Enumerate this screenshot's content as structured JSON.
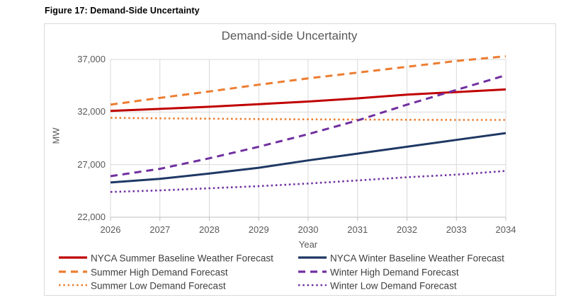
{
  "figure_caption": "Figure 17: Demand-Side Uncertainty",
  "chart": {
    "title": "Demand-side Uncertainty",
    "xlabel": "Year",
    "ylabel": "MW"
  },
  "colors": {
    "grid": "#d9d9d9",
    "axis": "#bfbfbf",
    "title_text": "#595959",
    "tick_text": "#595959",
    "legend_text": "#404040",
    "summer_red": "#C00000",
    "summer_orange": "#ED7D31",
    "winter_navy": "#1F3864",
    "winter_purple": "#7030A0"
  },
  "chart_data": {
    "type": "line",
    "title": "Demand-side Uncertainty",
    "xlabel": "Year",
    "ylabel": "MW",
    "x": [
      2026,
      2027,
      2028,
      2029,
      2030,
      2031,
      2032,
      2033,
      2034
    ],
    "ylim": [
      22000,
      37000
    ],
    "y_ticks": [
      22000,
      27000,
      32000,
      37000
    ],
    "y_tick_labels": [
      "22,000",
      "27,000",
      "32,000",
      "37,000"
    ],
    "grid": true,
    "legend_position": "bottom",
    "series": [
      {
        "name": "NYCA Summer Baseline Weather Forecast",
        "color": "#C00000",
        "style": "solid",
        "values": [
          32100,
          32300,
          32500,
          32750,
          33000,
          33300,
          33650,
          33900,
          34150
        ]
      },
      {
        "name": "Summer High Demand Forecast",
        "color": "#ED7D31",
        "style": "dashed",
        "values": [
          32700,
          33350,
          33950,
          34600,
          35200,
          35750,
          36300,
          36850,
          37300
        ]
      },
      {
        "name": "Summer Low Demand Forecast",
        "color": "#ED7D31",
        "style": "dotted",
        "values": [
          31450,
          31400,
          31370,
          31330,
          31300,
          31280,
          31260,
          31250,
          31250
        ]
      },
      {
        "name": "NYCA Winter Baseline Weather Forecast",
        "color": "#1F3864",
        "style": "solid",
        "values": [
          25300,
          25650,
          26150,
          26700,
          27400,
          28050,
          28700,
          29350,
          30000
        ]
      },
      {
        "name": "Winter High Demand Forecast",
        "color": "#7030A0",
        "style": "dashed",
        "values": [
          25900,
          26600,
          27600,
          28700,
          29900,
          31200,
          32700,
          34100,
          35500
        ]
      },
      {
        "name": "Winter Low Demand Forecast",
        "color": "#7030A0",
        "style": "dotted",
        "values": [
          24400,
          24550,
          24750,
          24950,
          25200,
          25500,
          25800,
          26050,
          26400
        ]
      }
    ]
  }
}
